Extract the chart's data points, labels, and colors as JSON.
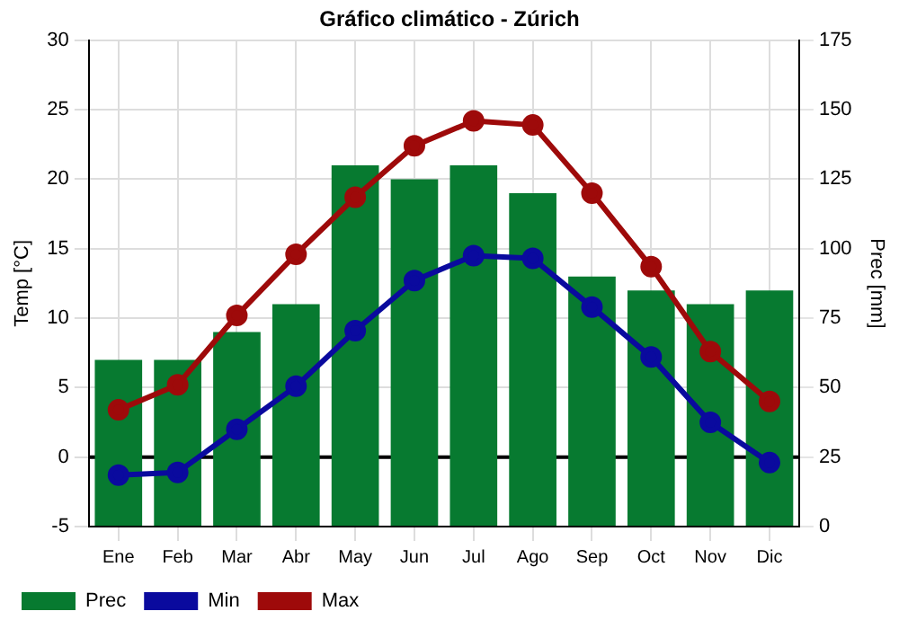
{
  "chart_data": {
    "type": "bar",
    "title": "Gráfico climático - Zúrich",
    "ylabel": "Temp [°C]",
    "y2label": "Prec [mm]",
    "categories": [
      "Ene",
      "Feb",
      "Mar",
      "Abr",
      "May",
      "Jun",
      "Jul",
      "Ago",
      "Sep",
      "Oct",
      "Nov",
      "Dic"
    ],
    "series": [
      {
        "name": "Prec",
        "axis": "y2",
        "color": "#077a30",
        "values": [
          60,
          60,
          70,
          80,
          130,
          125,
          130,
          120,
          90,
          85,
          80,
          85
        ]
      },
      {
        "name": "Min",
        "type": "line",
        "color": "#0a0a9e",
        "values": [
          -1.3,
          -1.1,
          2.0,
          5.1,
          9.1,
          12.7,
          14.5,
          14.3,
          10.8,
          7.2,
          2.5,
          -0.4
        ]
      },
      {
        "name": "Max",
        "type": "line",
        "color": "#9e0a0a",
        "values": [
          3.4,
          5.2,
          10.2,
          14.6,
          18.7,
          22.4,
          24.2,
          23.9,
          19.0,
          13.7,
          7.6,
          4.0
        ]
      }
    ],
    "ylim": [
      -5,
      30
    ],
    "yticks": [
      -5,
      0,
      5,
      10,
      15,
      20,
      25,
      30
    ],
    "y2lim": [
      0,
      175
    ],
    "y2ticks": [
      0,
      25,
      50,
      75,
      100,
      125,
      150,
      175
    ],
    "ref_lines": [
      {
        "axis": "y",
        "value": 0,
        "color": "#000000"
      }
    ],
    "grid": true,
    "legend": "bottom left",
    "marker": "circle",
    "line_style": "solid"
  }
}
